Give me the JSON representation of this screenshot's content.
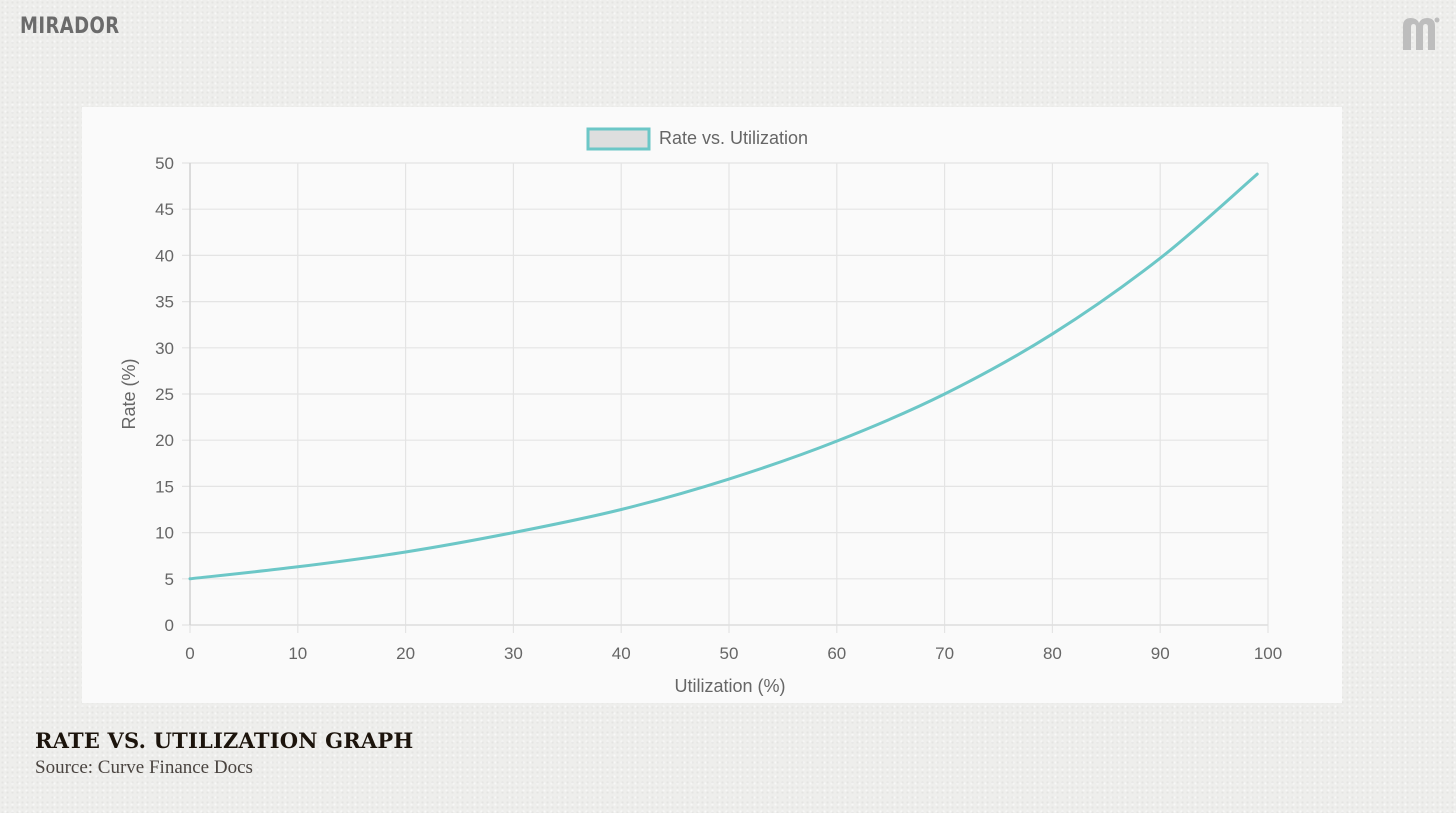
{
  "brand": {
    "name": "MIRADOR",
    "icon": "mirador-m-logo-icon"
  },
  "caption": {
    "title": "RATE VS. UTILIZATION GRAPH",
    "source": "Source: Curve Finance Docs"
  },
  "colors": {
    "line": "#6cc7c7",
    "legend_fill": "#dedede",
    "grid": "#e4e4e4",
    "text": "#666666"
  },
  "chart_data": {
    "type": "line",
    "title": "",
    "xlabel": "Utilization (%)",
    "ylabel": "Rate (%)",
    "xlim": [
      0,
      100
    ],
    "ylim": [
      0,
      50
    ],
    "xticks": [
      0,
      10,
      20,
      30,
      40,
      50,
      60,
      70,
      80,
      90,
      100
    ],
    "yticks": [
      0,
      5,
      10,
      15,
      20,
      25,
      30,
      35,
      40,
      45,
      50
    ],
    "grid": true,
    "legend_position": "top-center",
    "series": [
      {
        "name": "Rate vs. Utilization",
        "x": [
          0,
          10,
          20,
          30,
          40,
          50,
          60,
          70,
          80,
          90,
          99
        ],
        "y": [
          5,
          6.3,
          7.9,
          10,
          12.5,
          15.8,
          19.9,
          25,
          31.5,
          39.7,
          48.8
        ]
      }
    ]
  }
}
